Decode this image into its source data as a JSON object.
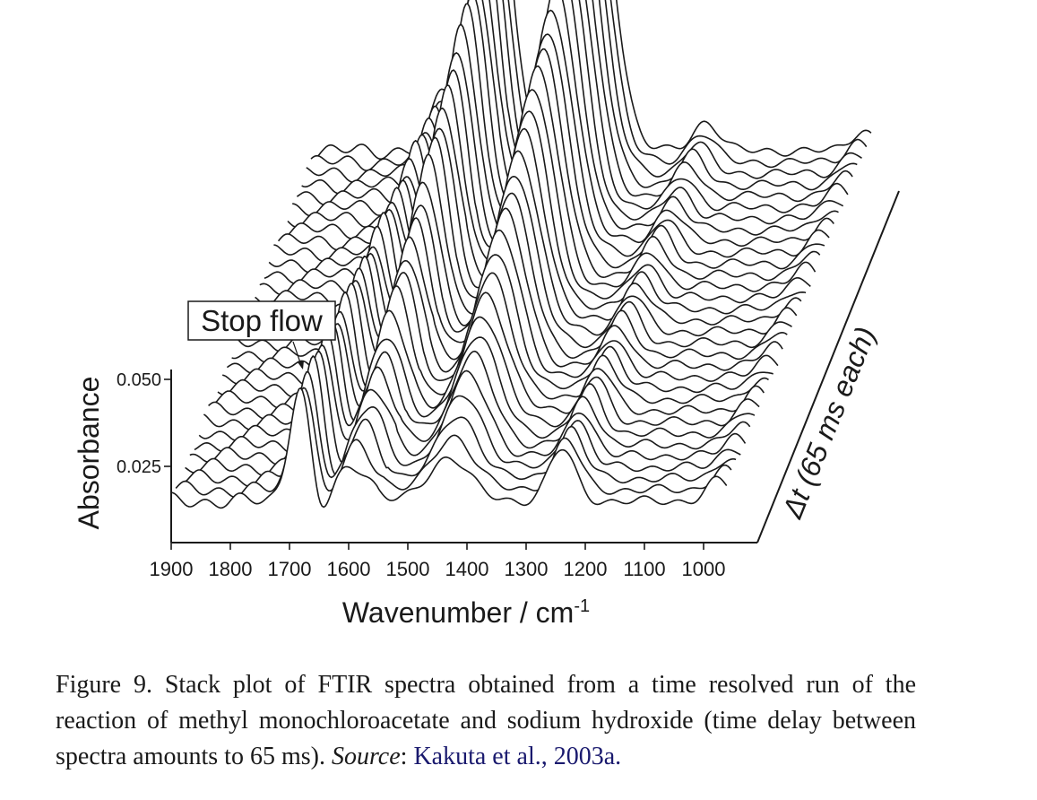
{
  "chart_data": {
    "type": "line",
    "title": "",
    "xlabel": "Wavenumber / cm",
    "xlabel_sup": "-1",
    "ylabel": "Absorbance",
    "zlabel_symbol": "Δt",
    "zlabel_rest": " (65 ms each)",
    "annotation": "Stop flow",
    "x_ticks": [
      1900,
      1800,
      1700,
      1600,
      1500,
      1400,
      1300,
      1200,
      1100,
      1000
    ],
    "x_tick_labels": [
      "1900",
      "1800",
      "1700",
      "1600",
      "1500",
      "1400",
      "1300",
      "1200",
      "1100",
      "1000"
    ],
    "xlim": [
      1900,
      960
    ],
    "y_ticks": [
      0.025,
      0.05
    ],
    "y_tick_labels": [
      "0.025",
      "0.050"
    ],
    "ylim": [
      0.007,
      0.055
    ],
    "n_spectra": 32,
    "time_step_ms": 65,
    "stop_flow_index": 8,
    "components": {
      "ester_carbonyl_band": {
        "center_cm1": 1683,
        "peak_absorbance": 0.048
      },
      "carboxylate_band_1": {
        "center_cm1": 1590,
        "peak_absorbance_final": 0.086
      },
      "carboxylate_band_2": {
        "center_cm1": 1430,
        "peak_absorbance_final": 0.1
      },
      "ester_c_o_band": {
        "center_cm1": 1240,
        "peak_absorbance": 0.03
      },
      "band_near_1000": {
        "center_cm1": 975,
        "peak_absorbance": 0.018
      }
    }
  },
  "caption": {
    "prefix": "Figure 9. Stack plot of FTIR spectra obtained from a time resolved run of the reaction of methyl monochloroacetate and sodium hydroxide (time delay between spectra amounts to 65 ms). ",
    "source_label": "Source",
    "colon": ": ",
    "source_link": "Kakuta et al., 2003a",
    "period": "."
  }
}
